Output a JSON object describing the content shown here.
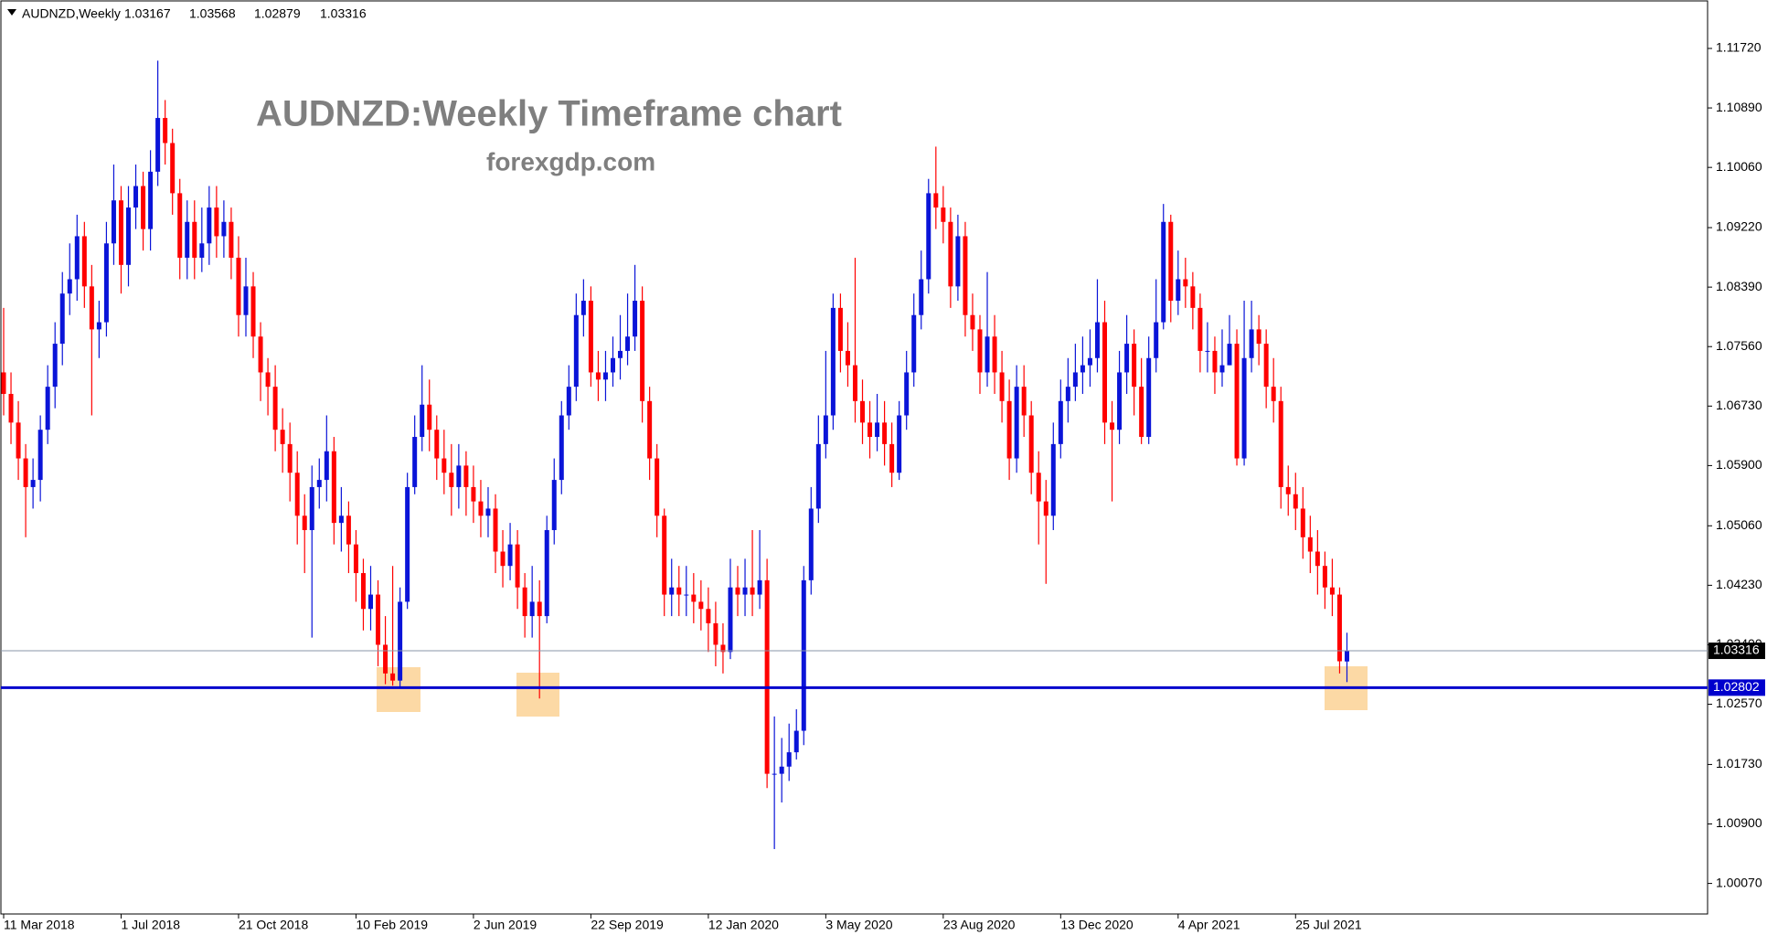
{
  "chart_data": {
    "type": "candlestick",
    "symbol": "AUDNZD,Weekly",
    "title": "AUDNZD:Weekly Timeframe chart",
    "subtitle": "forexgdp.com",
    "up_color": "#0a14d8",
    "down_color": "#ff0000",
    "categories": [
      "11 Mar 2018",
      null,
      null,
      null,
      null,
      null,
      null,
      null,
      null,
      null,
      null,
      null,
      null,
      null,
      null,
      null,
      "1 Jul 2018",
      null,
      null,
      null,
      null,
      null,
      null,
      null,
      null,
      null,
      null,
      null,
      null,
      null,
      null,
      null,
      "21 Oct 2018",
      null,
      null,
      null,
      null,
      null,
      null,
      null,
      null,
      null,
      null,
      null,
      null,
      null,
      null,
      null,
      "10 Feb 2019",
      null,
      null,
      null,
      null,
      null,
      null,
      null,
      null,
      null,
      null,
      null,
      null,
      null,
      null,
      null,
      "2 Jun 2019",
      null,
      null,
      null,
      null,
      null,
      null,
      null,
      null,
      null,
      null,
      null,
      null,
      null,
      null,
      null,
      "22 Sep 2019",
      null,
      null,
      null,
      null,
      null,
      null,
      null,
      null,
      null,
      null,
      null,
      null,
      null,
      null,
      null,
      "12 Jan 2020",
      null,
      null,
      null,
      null,
      null,
      null,
      null,
      null,
      null,
      null,
      null,
      null,
      null,
      null,
      null,
      "3 May 2020",
      null,
      null,
      null,
      null,
      null,
      null,
      null,
      null,
      null,
      null,
      null,
      null,
      null,
      null,
      null,
      "23 Aug 2020",
      null,
      null,
      null,
      null,
      null,
      null,
      null,
      null,
      null,
      null,
      null,
      null,
      null,
      null,
      null,
      "13 Dec 2020",
      null,
      null,
      null,
      null,
      null,
      null,
      null,
      null,
      null,
      null,
      null,
      null,
      null,
      null,
      null,
      "4 Apr 2021",
      null,
      null,
      null,
      null,
      null,
      null,
      null,
      null,
      null,
      null,
      null,
      null,
      null,
      null,
      null,
      "25 Jul 2021",
      null,
      null,
      null,
      null,
      null,
      null,
      null
    ],
    "open": [
      1.072,
      1.069,
      1.065,
      1.06,
      1.056,
      1.057,
      1.064,
      1.07,
      1.076,
      1.083,
      1.085,
      1.091,
      1.084,
      1.078,
      1.079,
      1.09,
      1.096,
      1.087,
      1.095,
      1.098,
      1.092,
      1.1,
      1.1075,
      1.104,
      1.097,
      1.088,
      1.093,
      1.088,
      1.09,
      1.095,
      1.091,
      1.093,
      1.088,
      1.08,
      1.084,
      1.077,
      1.072,
      1.07,
      1.064,
      1.062,
      1.058,
      1.052,
      1.05,
      1.056,
      1.057,
      1.061,
      1.051,
      1.052,
      1.048,
      1.044,
      1.039,
      1.041,
      1.034,
      1.03,
      1.029,
      1.04,
      1.056,
      1.063,
      1.0675,
      1.064,
      1.06,
      1.058,
      1.056,
      1.059,
      1.056,
      1.054,
      1.052,
      1.053,
      1.047,
      1.045,
      1.048,
      1.042,
      1.038,
      1.04,
      1.038,
      1.05,
      1.057,
      1.066,
      1.07,
      1.08,
      1.082,
      1.072,
      1.071,
      1.072,
      1.074,
      1.075,
      1.077,
      1.082,
      1.068,
      1.06,
      1.052,
      1.041,
      1.042,
      1.041,
      1.041,
      1.04,
      1.039,
      1.037,
      1.034,
      1.033,
      1.042,
      1.041,
      1.042,
      1.041,
      1.043,
      1.016,
      1.016,
      1.017,
      1.019,
      1.022,
      1.043,
      1.053,
      1.062,
      1.066,
      1.081,
      1.075,
      1.073,
      1.068,
      1.065,
      1.063,
      1.065,
      1.062,
      1.058,
      1.066,
      1.072,
      1.08,
      1.085,
      1.097,
      1.095,
      1.093,
      1.084,
      1.091,
      1.08,
      1.078,
      1.072,
      1.077,
      1.072,
      1.068,
      1.06,
      1.07,
      1.066,
      1.058,
      1.054,
      1.052,
      1.062,
      1.068,
      1.07,
      1.072,
      1.073,
      1.074,
      1.079,
      1.065,
      1.064,
      1.072,
      1.076,
      1.07,
      1.063,
      1.074,
      1.079,
      1.093,
      1.082,
      1.085,
      1.084,
      1.081,
      1.075,
      1.075,
      1.072,
      1.073,
      1.076,
      1.06,
      1.074,
      1.078,
      1.076,
      1.07,
      1.068,
      1.056,
      1.055,
      1.053,
      1.049,
      1.047,
      1.045,
      1.042,
      1.041,
      1.03167
    ],
    "high": [
      1.081,
      1.072,
      1.068,
      1.062,
      1.06,
      1.066,
      1.073,
      1.079,
      1.086,
      1.09,
      1.094,
      1.093,
      1.087,
      1.082,
      1.093,
      1.101,
      1.098,
      1.098,
      1.101,
      1.1,
      1.103,
      1.1155,
      1.11,
      1.106,
      1.099,
      1.096,
      1.096,
      1.095,
      1.098,
      1.098,
      1.096,
      1.095,
      1.091,
      1.088,
      1.086,
      1.079,
      1.074,
      1.073,
      1.067,
      1.065,
      1.061,
      1.055,
      1.059,
      1.06,
      1.066,
      1.063,
      1.056,
      1.054,
      1.05,
      1.046,
      1.045,
      1.043,
      1.038,
      1.045,
      1.042,
      1.058,
      1.066,
      1.073,
      1.071,
      1.066,
      1.064,
      1.062,
      1.062,
      1.061,
      1.059,
      1.057,
      1.056,
      1.055,
      1.05,
      1.051,
      1.05,
      1.044,
      1.045,
      1.043,
      1.052,
      1.06,
      1.068,
      1.073,
      1.083,
      1.085,
      1.084,
      1.075,
      1.075,
      1.077,
      1.08,
      1.083,
      1.087,
      1.084,
      1.07,
      1.062,
      1.053,
      1.046,
      1.045,
      1.045,
      1.044,
      1.043,
      1.042,
      1.04,
      1.037,
      1.046,
      1.045,
      1.046,
      1.05,
      1.05,
      1.046,
      1.024,
      1.021,
      1.023,
      1.025,
      1.045,
      1.056,
      1.066,
      1.075,
      1.083,
      1.083,
      1.079,
      1.088,
      1.071,
      1.068,
      1.069,
      1.068,
      1.065,
      1.068,
      1.075,
      1.083,
      1.089,
      1.099,
      1.1035,
      1.098,
      1.095,
      1.094,
      1.093,
      1.083,
      1.08,
      1.086,
      1.08,
      1.075,
      1.071,
      1.073,
      1.073,
      1.068,
      1.061,
      1.057,
      1.065,
      1.071,
      1.074,
      1.076,
      1.077,
      1.078,
      1.085,
      1.082,
      1.068,
      1.075,
      1.08,
      1.078,
      1.074,
      1.077,
      1.085,
      1.0955,
      1.094,
      1.089,
      1.088,
      1.086,
      1.083,
      1.079,
      1.077,
      1.078,
      1.08,
      1.078,
      1.082,
      1.082,
      1.08,
      1.078,
      1.074,
      1.07,
      1.059,
      1.058,
      1.056,
      1.052,
      1.05,
      1.047,
      1.046,
      1.042,
      1.03568
    ],
    "low": [
      1.066,
      1.062,
      1.057,
      1.049,
      1.053,
      1.054,
      1.062,
      1.067,
      1.073,
      1.08,
      1.082,
      1.081,
      1.066,
      1.074,
      1.077,
      1.087,
      1.083,
      1.084,
      1.092,
      1.089,
      1.089,
      1.098,
      1.101,
      1.094,
      1.085,
      1.085,
      1.085,
      1.086,
      1.087,
      1.088,
      1.088,
      1.085,
      1.077,
      1.077,
      1.074,
      1.068,
      1.066,
      1.061,
      1.058,
      1.054,
      1.048,
      1.044,
      1.035,
      1.053,
      1.054,
      1.048,
      1.047,
      1.044,
      1.04,
      1.036,
      1.036,
      1.031,
      1.0285,
      1.0283,
      1.028,
      1.039,
      1.055,
      1.061,
      1.061,
      1.057,
      1.055,
      1.052,
      1.053,
      1.052,
      1.051,
      1.049,
      1.049,
      1.044,
      1.042,
      1.043,
      1.039,
      1.035,
      1.035,
      1.0265,
      1.037,
      1.048,
      1.055,
      1.064,
      1.068,
      1.077,
      1.07,
      1.068,
      1.068,
      1.07,
      1.071,
      1.073,
      1.075,
      1.065,
      1.057,
      1.049,
      1.038,
      1.038,
      1.038,
      1.038,
      1.037,
      1.036,
      1.033,
      1.031,
      1.03,
      1.032,
      1.038,
      1.038,
      1.038,
      1.039,
      1.014,
      1.0055,
      1.012,
      1.015,
      1.018,
      1.02,
      1.041,
      1.051,
      1.06,
      1.064,
      1.072,
      1.07,
      1.065,
      1.062,
      1.06,
      1.061,
      1.059,
      1.056,
      1.057,
      1.064,
      1.07,
      1.078,
      1.083,
      1.092,
      1.09,
      1.081,
      1.082,
      1.077,
      1.075,
      1.069,
      1.07,
      1.069,
      1.065,
      1.057,
      1.058,
      1.063,
      1.055,
      1.048,
      1.0425,
      1.05,
      1.06,
      1.065,
      1.068,
      1.069,
      1.07,
      1.072,
      1.062,
      1.054,
      1.062,
      1.069,
      1.066,
      1.062,
      1.062,
      1.072,
      1.078,
      1.079,
      1.08,
      1.081,
      1.078,
      1.072,
      1.072,
      1.069,
      1.07,
      1.073,
      1.059,
      1.059,
      1.072,
      1.073,
      1.067,
      1.065,
      1.053,
      1.052,
      1.05,
      1.046,
      1.044,
      1.041,
      1.039,
      1.038,
      1.03,
      1.02879
    ],
    "close": [
      1.069,
      1.065,
      1.06,
      1.056,
      1.057,
      1.064,
      1.07,
      1.076,
      1.083,
      1.085,
      1.091,
      1.084,
      1.078,
      1.079,
      1.09,
      1.096,
      1.087,
      1.095,
      1.098,
      1.092,
      1.1,
      1.1075,
      1.104,
      1.097,
      1.088,
      1.093,
      1.088,
      1.09,
      1.095,
      1.091,
      1.093,
      1.088,
      1.08,
      1.084,
      1.077,
      1.072,
      1.07,
      1.064,
      1.062,
      1.058,
      1.052,
      1.05,
      1.056,
      1.057,
      1.061,
      1.051,
      1.052,
      1.048,
      1.044,
      1.039,
      1.041,
      1.034,
      1.03,
      1.029,
      1.04,
      1.056,
      1.063,
      1.0675,
      1.064,
      1.06,
      1.058,
      1.056,
      1.059,
      1.056,
      1.054,
      1.052,
      1.053,
      1.047,
      1.045,
      1.048,
      1.042,
      1.038,
      1.04,
      1.038,
      1.05,
      1.057,
      1.066,
      1.07,
      1.08,
      1.082,
      1.072,
      1.071,
      1.072,
      1.074,
      1.075,
      1.077,
      1.082,
      1.068,
      1.06,
      1.052,
      1.041,
      1.042,
      1.041,
      1.041,
      1.04,
      1.039,
      1.037,
      1.034,
      1.033,
      1.042,
      1.041,
      1.042,
      1.041,
      1.043,
      1.016,
      1.016,
      1.017,
      1.019,
      1.022,
      1.043,
      1.053,
      1.062,
      1.066,
      1.081,
      1.075,
      1.073,
      1.068,
      1.065,
      1.063,
      1.065,
      1.062,
      1.058,
      1.066,
      1.072,
      1.08,
      1.085,
      1.097,
      1.095,
      1.093,
      1.084,
      1.091,
      1.08,
      1.078,
      1.072,
      1.077,
      1.072,
      1.068,
      1.06,
      1.07,
      1.066,
      1.058,
      1.054,
      1.052,
      1.062,
      1.068,
      1.07,
      1.072,
      1.073,
      1.074,
      1.079,
      1.065,
      1.064,
      1.072,
      1.076,
      1.07,
      1.063,
      1.074,
      1.079,
      1.093,
      1.082,
      1.085,
      1.084,
      1.081,
      1.075,
      1.075,
      1.072,
      1.073,
      1.076,
      1.06,
      1.074,
      1.078,
      1.076,
      1.07,
      1.068,
      1.056,
      1.055,
      1.053,
      1.049,
      1.047,
      1.045,
      1.042,
      1.041,
      1.0317,
      1.03316
    ],
    "ylim": [
      0.99644,
      1.12383
    ],
    "yticks": [
      {
        "value": 1.1172,
        "label": "1.11720"
      },
      {
        "value": 1.1089,
        "label": "1.10890"
      },
      {
        "value": 1.1006,
        "label": "1.10060"
      },
      {
        "value": 1.0922,
        "label": "1.09220"
      },
      {
        "value": 1.0839,
        "label": "1.08390"
      },
      {
        "value": 1.0756,
        "label": "1.07560"
      },
      {
        "value": 1.0673,
        "label": "1.06730"
      },
      {
        "value": 1.059,
        "label": "1.05900"
      },
      {
        "value": 1.0506,
        "label": "1.05060"
      },
      {
        "value": 1.0423,
        "label": "1.04230"
      },
      {
        "value": 1.034,
        "label": "1.03400"
      },
      {
        "value": 1.0257,
        "label": "1.02570"
      },
      {
        "value": 1.0173,
        "label": "1.01730"
      },
      {
        "value": 1.009,
        "label": "1.00900"
      },
      {
        "value": 1.0007,
        "label": "1.00070"
      }
    ],
    "hlines": [
      {
        "value": {
          "value": 1.02802,
          "label": "1.02802"
        },
        "color": "#0000cd"
      }
    ],
    "price_line_color": "#8a96a8",
    "grid": false
  }
}
